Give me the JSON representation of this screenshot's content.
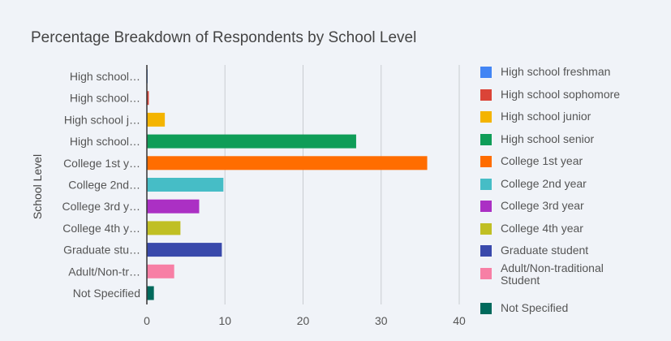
{
  "chart_data": {
    "type": "bar",
    "orientation": "horizontal",
    "title": "Percentage Breakdown of Respondents by School Level",
    "ylabel": "School Level",
    "xlabel": "",
    "xlim": [
      0,
      40
    ],
    "xticks": [
      "0",
      "10",
      "20",
      "30",
      "40"
    ],
    "grid": true,
    "legend_position": "right",
    "categories": [
      "High school freshman",
      "High school sophomore",
      "High school junior",
      "High school senior",
      "College 1st year",
      "College 2nd year",
      "College 3rd year",
      "College 4th year",
      "Graduate student",
      "Adult/Non-traditional Student",
      "Not Specified"
    ],
    "tick_labels": [
      "High school…",
      "High school…",
      "High school j…",
      "High school…",
      "College 1st y…",
      "College 2nd…",
      "College 3rd y…",
      "College 4th y…",
      "Graduate stu…",
      "Adult/Non-tr…",
      "Not Specified"
    ],
    "values": [
      0.1,
      0.25,
      2.3,
      26.8,
      35.9,
      9.8,
      6.7,
      4.3,
      9.6,
      3.5,
      0.9
    ],
    "colors": [
      "#4285f4",
      "#db4437",
      "#f4b400",
      "#0f9d58",
      "#ff6d00",
      "#46bdc6",
      "#ab30c4",
      "#c0bf24",
      "#3949ab",
      "#f77fa5",
      "#00695c"
    ]
  }
}
